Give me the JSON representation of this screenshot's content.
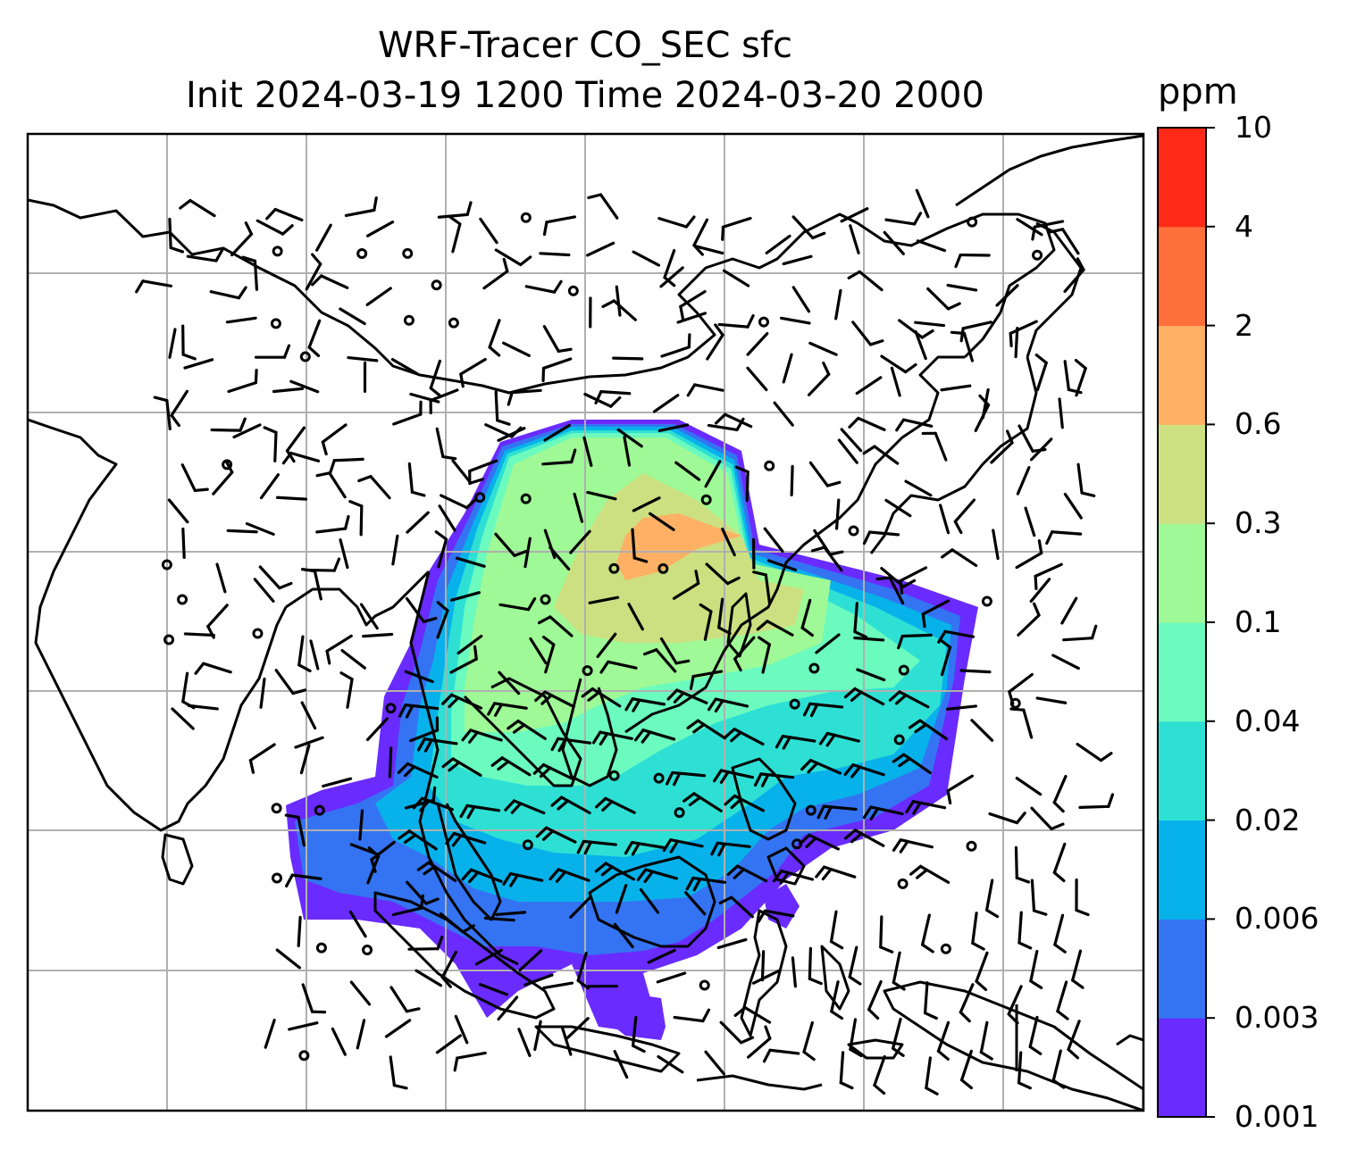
{
  "title": {
    "line1": "WRF-Tracer CO_SEC sfc",
    "line2": "Init 2024-03-19 1200 Time 2024-03-20 2000"
  },
  "colorbar": {
    "unit": "ppm",
    "levels": [
      "0.001",
      "0.003",
      "0.006",
      "0.02",
      "0.04",
      "0.1",
      "0.3",
      "0.6",
      "2",
      "4",
      "10"
    ],
    "colors": [
      "#6a2bff",
      "#3474f2",
      "#07b2ea",
      "#2ee0d4",
      "#6bfbbf",
      "#9ff996",
      "#cde081",
      "#feb164",
      "#fe6f3c",
      "#fe2a17"
    ]
  },
  "map": {
    "type": "filled-contour tracer concentration with wind barbs",
    "field": "CO_SEC",
    "level": "sfc",
    "gridlines": true,
    "coastlines": true,
    "wind_barbs": true
  }
}
